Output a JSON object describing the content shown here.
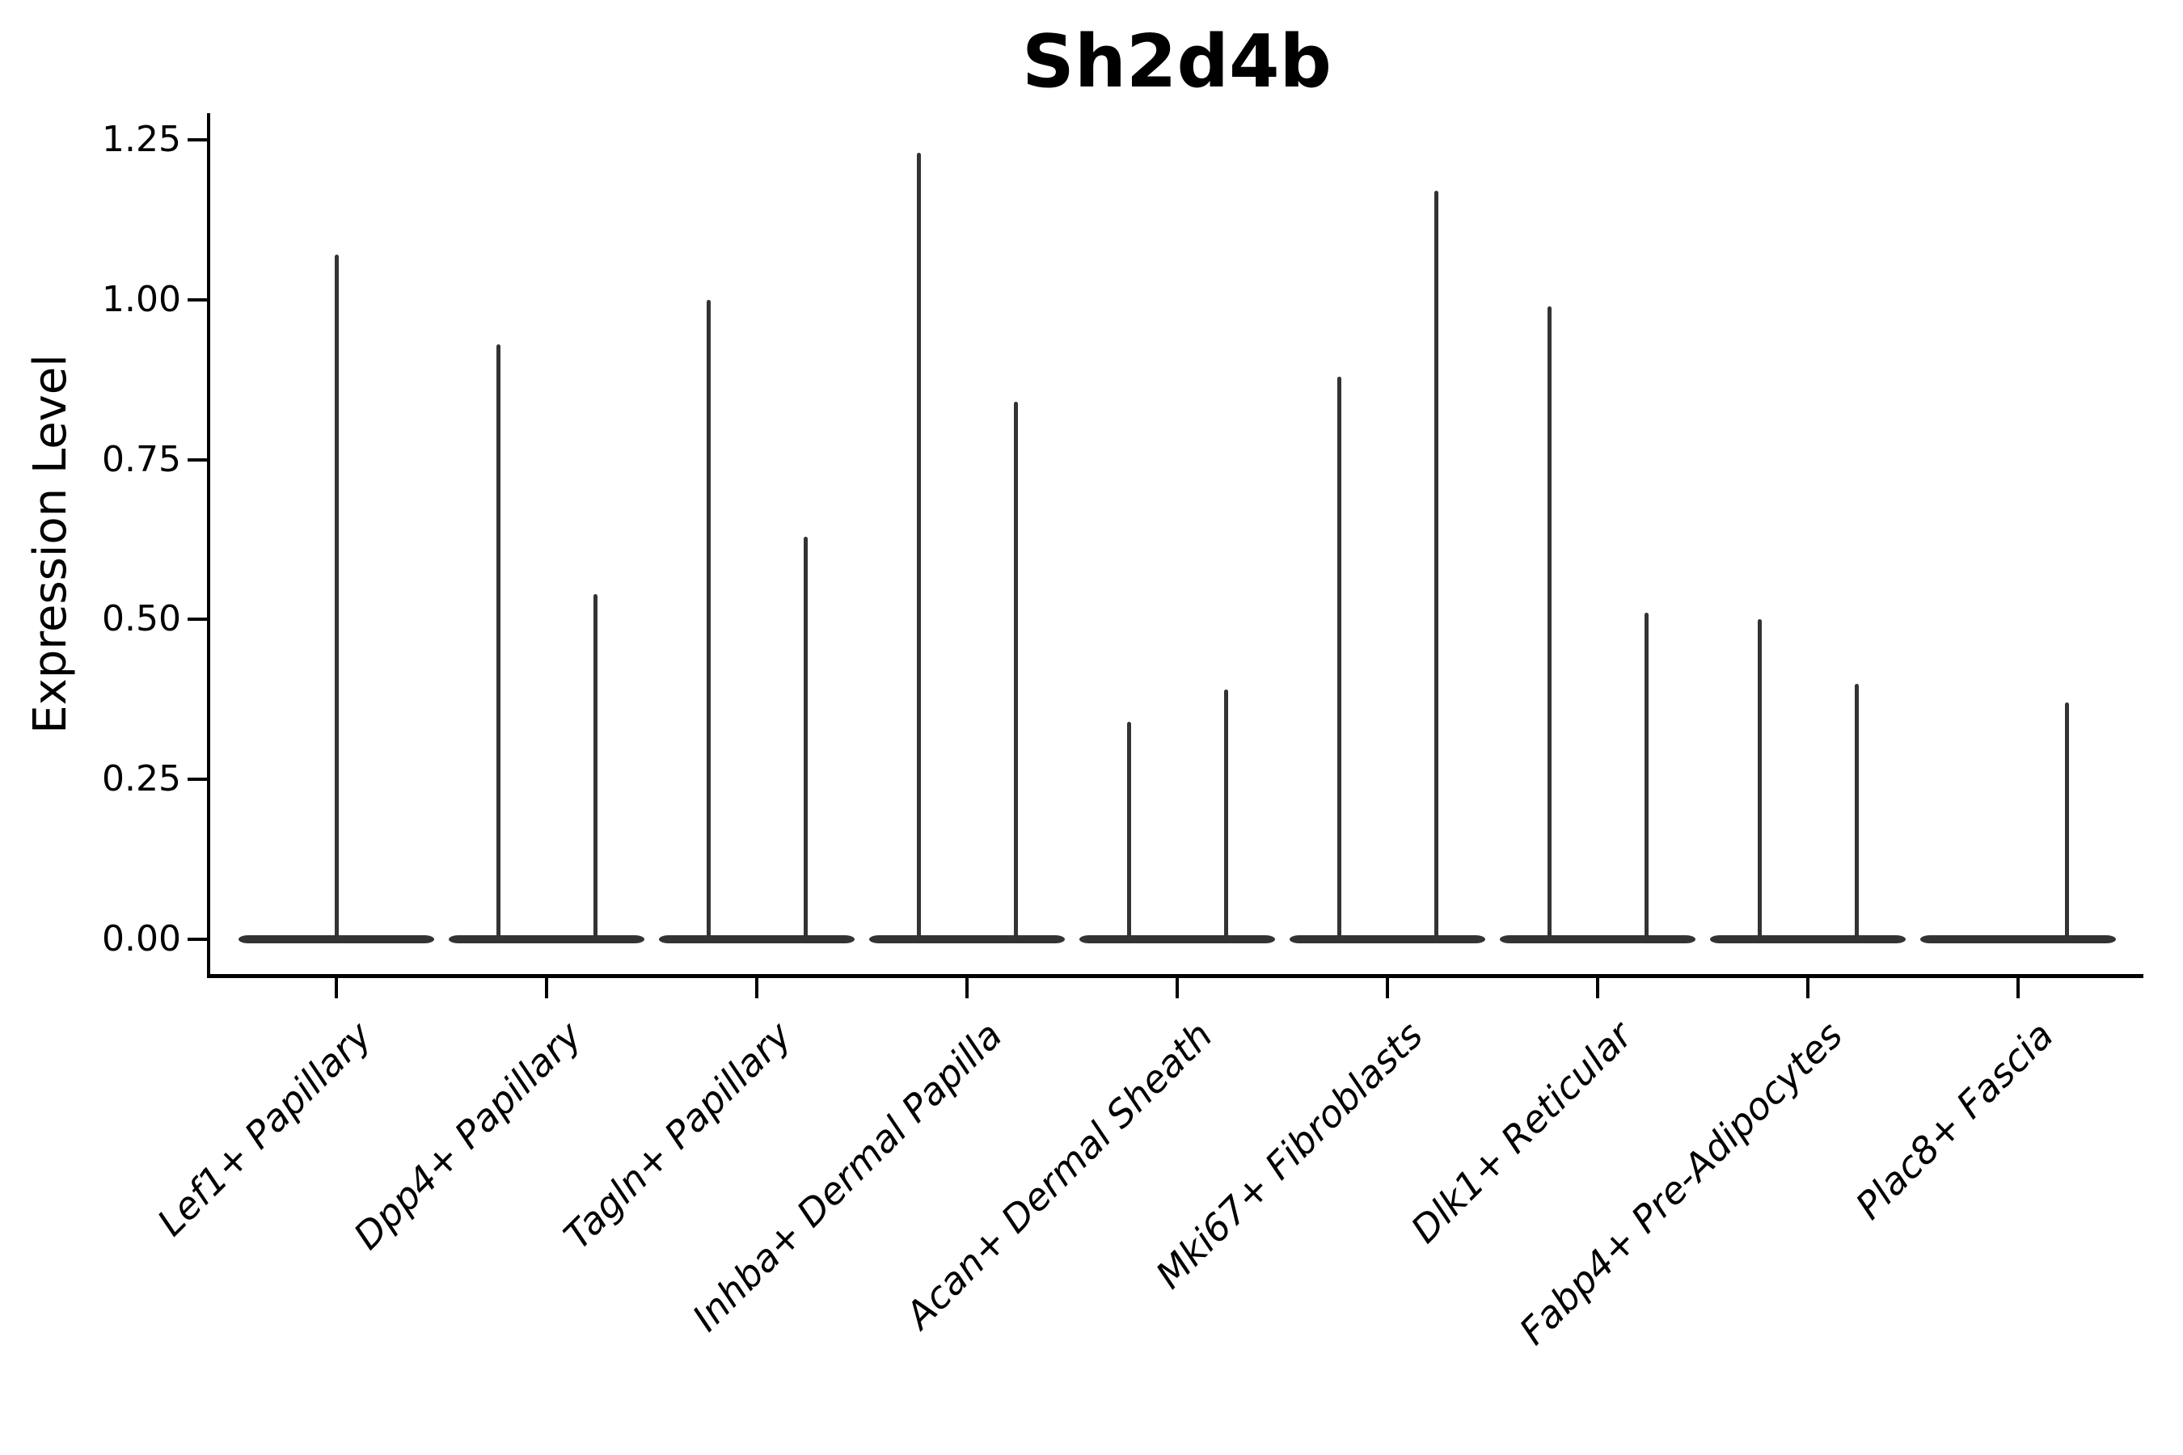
{
  "colors": {
    "violin": "#333333",
    "axis": "#000000",
    "text": "#000000",
    "background": "#ffffff"
  },
  "chart_data": {
    "type": "violin",
    "title": "Sh2d4b",
    "ylabel": "Expression Level",
    "xlabel": "",
    "ylim": [
      -0.06,
      1.29
    ],
    "grid": false,
    "legend": "none",
    "yticks": [
      0,
      0.25,
      0.5,
      0.75,
      1.0,
      1.25
    ],
    "ytick_labels": [
      "0.00",
      "0.25",
      "0.50",
      "0.75",
      "1.00",
      "1.25"
    ],
    "categories": [
      "Lef1+ Papillary",
      "Dpp4+ Papillary",
      "Tagln+ Papillary",
      "Inhba+ Dermal Papilla",
      "Acan+ Dermal Sheath",
      "Mki67+ Fibroblasts",
      "Dlk1+ Reticular",
      "Fabp4+ Pre-Adipocytes",
      "Plac8+ Fascia"
    ],
    "violin_style": "mass concentrated at 0 (flat wide base) with thin spikes up to the max expression value",
    "violins": [
      {
        "category": "Lef1+ Papillary",
        "spikes": [
          {
            "position": "center",
            "max": 1.07
          }
        ]
      },
      {
        "category": "Dpp4+ Papillary",
        "spikes": [
          {
            "position": "left",
            "max": 0.93
          },
          {
            "position": "right",
            "max": 0.54
          }
        ]
      },
      {
        "category": "Tagln+ Papillary",
        "spikes": [
          {
            "position": "left",
            "max": 1.0
          },
          {
            "position": "right",
            "max": 0.63
          }
        ]
      },
      {
        "category": "Inhba+ Dermal Papilla",
        "spikes": [
          {
            "position": "left",
            "max": 1.23
          },
          {
            "position": "right",
            "max": 0.84
          }
        ]
      },
      {
        "category": "Acan+ Dermal Sheath",
        "spikes": [
          {
            "position": "left",
            "max": 0.34
          },
          {
            "position": "right",
            "max": 0.39
          }
        ]
      },
      {
        "category": "Mki67+ Fibroblasts",
        "spikes": [
          {
            "position": "left",
            "max": 0.88
          },
          {
            "position": "right",
            "max": 1.17
          }
        ]
      },
      {
        "category": "Dlk1+ Reticular",
        "spikes": [
          {
            "position": "left",
            "max": 0.99
          },
          {
            "position": "right",
            "max": 0.51
          }
        ]
      },
      {
        "category": "Fabp4+ Pre-Adipocytes",
        "spikes": [
          {
            "position": "left",
            "max": 0.5
          },
          {
            "position": "right",
            "max": 0.4
          }
        ]
      },
      {
        "category": "Plac8+ Fascia",
        "spikes": [
          {
            "position": "right",
            "max": 0.37
          }
        ]
      }
    ]
  }
}
